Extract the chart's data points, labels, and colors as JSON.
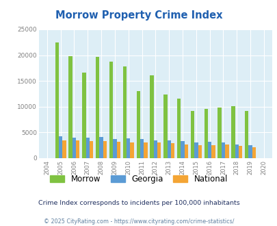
{
  "title": "Morrow Property Crime Index",
  "years": [
    2004,
    2005,
    2006,
    2007,
    2008,
    2009,
    2010,
    2011,
    2012,
    2013,
    2014,
    2015,
    2016,
    2017,
    2018,
    2019,
    2020
  ],
  "morrow": [
    0,
    22400,
    19800,
    16600,
    19700,
    18700,
    17800,
    13000,
    16100,
    12300,
    11500,
    9200,
    9600,
    9900,
    10100,
    9200,
    0
  ],
  "georgia": [
    0,
    4300,
    4000,
    4000,
    4100,
    3700,
    3900,
    3700,
    3500,
    3500,
    3300,
    3100,
    3200,
    3000,
    2600,
    2500,
    0
  ],
  "national": [
    0,
    3500,
    3400,
    3300,
    3300,
    3200,
    3100,
    3000,
    3000,
    2900,
    2700,
    2500,
    2500,
    2600,
    2400,
    2100,
    0
  ],
  "morrow_color": "#7fc241",
  "georgia_color": "#5b9bd5",
  "national_color": "#f4a535",
  "bg_color": "#ddeef6",
  "ylim": [
    0,
    25000
  ],
  "yticks": [
    0,
    5000,
    10000,
    15000,
    20000,
    25000
  ],
  "subtitle": "Crime Index corresponds to incidents per 100,000 inhabitants",
  "footer": "© 2025 CityRating.com - https://www.cityrating.com/crime-statistics/",
  "title_color": "#2060b0",
  "subtitle_color": "#203060",
  "footer_color": "#6080a0",
  "bar_width": 0.27
}
